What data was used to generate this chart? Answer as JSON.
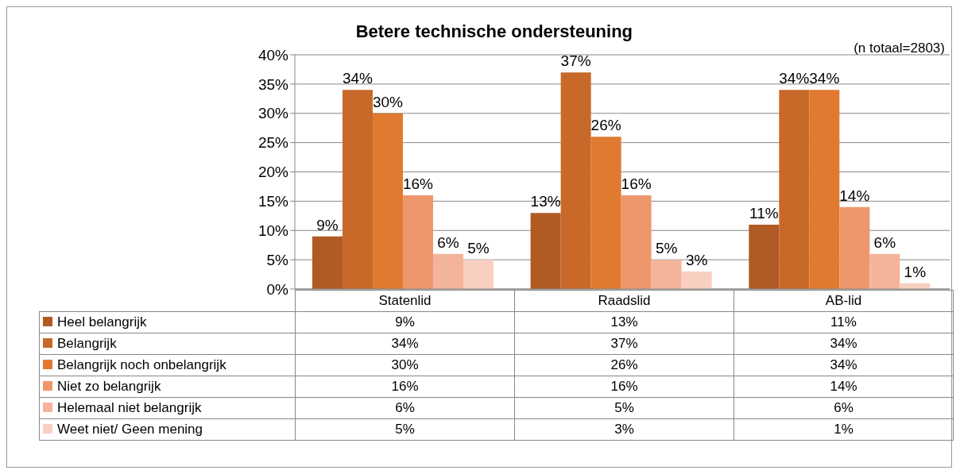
{
  "chart_data": {
    "type": "bar",
    "title": "Betere technische ondersteuning",
    "annotations": [
      "(n totaal=2803)"
    ],
    "categories": [
      "Statenlid",
      "Raadslid",
      "AB-lid"
    ],
    "series": [
      {
        "name": "Heel belangrijk",
        "color": "#b05a24",
        "values": [
          9,
          13,
          11
        ],
        "value_labels": [
          "9%",
          "13%",
          "11%"
        ]
      },
      {
        "name": "Belangrijk",
        "color": "#c8692a",
        "values": [
          34,
          37,
          34
        ],
        "value_labels": [
          "34%",
          "37%",
          "34%"
        ]
      },
      {
        "name": "Belangrijk noch onbelangrijk",
        "color": "#e07a30",
        "values": [
          30,
          26,
          34
        ],
        "value_labels": [
          "30%",
          "26%",
          "34%"
        ]
      },
      {
        "name": "Niet zo belangrijk",
        "color": "#ef976c",
        "values": [
          16,
          16,
          14
        ],
        "value_labels": [
          "16%",
          "16%",
          "14%"
        ]
      },
      {
        "name": "Helemaal niet belangrijk",
        "color": "#f4b49c",
        "values": [
          6,
          5,
          6
        ],
        "value_labels": [
          "6%",
          "5%",
          "6%"
        ]
      },
      {
        "name": "Weet niet/ Geen mening",
        "color": "#f8cfc0",
        "values": [
          5,
          3,
          1
        ],
        "value_labels": [
          "5%",
          "3%",
          "1%"
        ]
      }
    ],
    "ylim": [
      0,
      40
    ],
    "yticks": [
      {
        "value": 0,
        "label": "0%"
      },
      {
        "value": 5,
        "label": "5%"
      },
      {
        "value": 10,
        "label": "10%"
      },
      {
        "value": 15,
        "label": "15%"
      },
      {
        "value": 20,
        "label": "20%"
      },
      {
        "value": 25,
        "label": "25%"
      },
      {
        "value": 30,
        "label": "30%"
      },
      {
        "value": 35,
        "label": "35%"
      },
      {
        "value": 40,
        "label": "40%"
      }
    ],
    "grid": "y",
    "legend": "bottom"
  }
}
